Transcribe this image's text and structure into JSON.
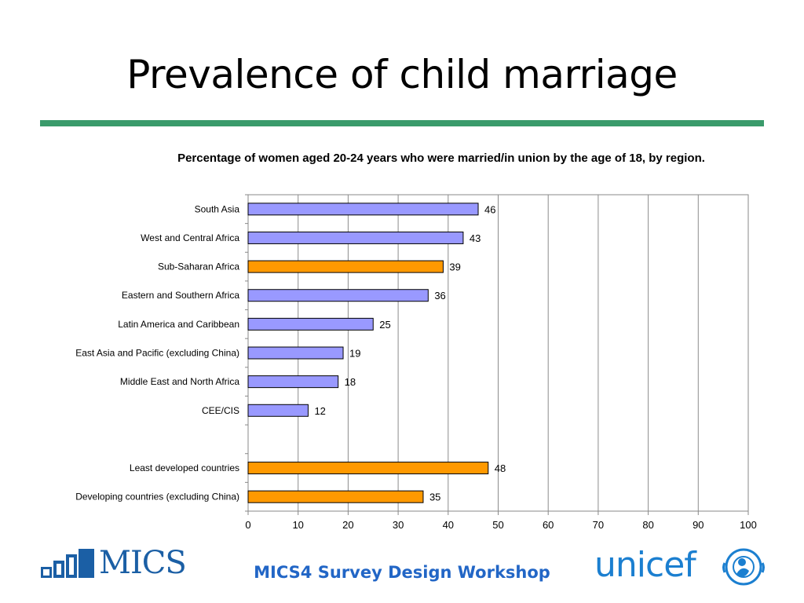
{
  "slide": {
    "title": "Prevalence of child marriage",
    "footer": "MICS4 Survey Design Workshop",
    "logos": {
      "mics": "MICS",
      "unicef": "unicef"
    }
  },
  "chart_data": {
    "type": "bar",
    "orientation": "horizontal",
    "title": "Percentage of women aged 20-24 years who were married/in union by the age of 18, by region.",
    "categories": [
      "South Asia",
      "West and Central Africa",
      "Sub-Saharan Africa",
      "Eastern and Southern Africa",
      "Latin America and Caribbean",
      "East Asia and Pacific (excluding China)",
      "Middle East and North Africa",
      "CEE/CIS",
      "",
      "Least developed countries",
      "Developing countries (excluding China)"
    ],
    "values": [
      46,
      43,
      39,
      36,
      25,
      19,
      18,
      12,
      null,
      48,
      35
    ],
    "bar_colors": [
      "#9999ff",
      "#9999ff",
      "#ff9900",
      "#9999ff",
      "#9999ff",
      "#9999ff",
      "#9999ff",
      "#9999ff",
      null,
      "#ff9900",
      "#ff9900"
    ],
    "data_labels": [
      "46",
      "43",
      "39",
      "36",
      "25",
      "19",
      "18",
      "12",
      "",
      "48",
      "35"
    ],
    "xlim": [
      0,
      100
    ],
    "xticks": [
      0,
      10,
      20,
      30,
      40,
      50,
      60,
      70,
      80,
      90,
      100
    ],
    "grid": "vertical",
    "legend": "none"
  }
}
